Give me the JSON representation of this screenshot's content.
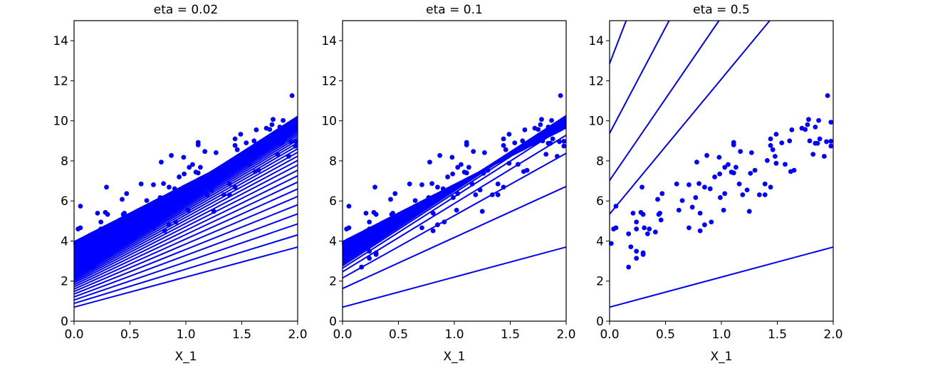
{
  "chart_data": [
    {
      "type": "scatter+line",
      "title": "eta = 0.02",
      "eta": 0.02,
      "xlabel": "X_1",
      "ylabel": "",
      "xlim": [
        0,
        2
      ],
      "ylim": [
        0,
        15
      ],
      "xticks": [
        "0.0",
        "0.5",
        "1.0",
        "1.5",
        "2.0"
      ],
      "yticks": [
        "0",
        "2",
        "4",
        "6",
        "8",
        "10",
        "12",
        "14"
      ],
      "grid": false
    },
    {
      "type": "scatter+line",
      "title": "eta = 0.1",
      "eta": 0.1,
      "xlabel": "X_1",
      "ylabel": "",
      "xlim": [
        0,
        2
      ],
      "ylim": [
        0,
        15
      ],
      "xticks": [
        "0.0",
        "0.5",
        "1.0",
        "1.5",
        "2.0"
      ],
      "yticks": [
        "0",
        "2",
        "4",
        "6",
        "8",
        "10",
        "12",
        "14"
      ],
      "grid": false
    },
    {
      "type": "scatter+line",
      "title": "eta = 0.5",
      "eta": 0.5,
      "xlabel": "X_1",
      "ylabel": "",
      "xlim": [
        0,
        2
      ],
      "ylim": [
        0,
        15
      ],
      "xticks": [
        "0.0",
        "0.5",
        "1.0",
        "1.5",
        "2.0"
      ],
      "yticks": [
        "0",
        "2",
        "4",
        "6",
        "8",
        "10",
        "12",
        "14"
      ],
      "grid": false
    }
  ],
  "initial_line": {
    "intercept": 0.7,
    "slope": 1.5
  },
  "colors": {
    "points": "#0000ff",
    "lines": "#0000ff"
  },
  "points": [
    [
      0.015,
      3.88
    ],
    [
      0.036,
      4.6
    ],
    [
      0.057,
      4.66
    ],
    [
      0.057,
      5.74
    ],
    [
      0.17,
      2.7
    ],
    [
      0.17,
      4.36
    ],
    [
      0.19,
      3.71
    ],
    [
      0.21,
      5.39
    ],
    [
      0.24,
      4.95
    ],
    [
      0.24,
      4.6
    ],
    [
      0.24,
      3.49
    ],
    [
      0.24,
      3.14
    ],
    [
      0.28,
      5.43
    ],
    [
      0.3,
      5.33
    ],
    [
      0.29,
      6.69
    ],
    [
      0.3,
      3.41
    ],
    [
      0.3,
      3.33
    ],
    [
      0.31,
      4.66
    ],
    [
      0.34,
      4.36
    ],
    [
      0.355,
      4.6
    ],
    [
      0.41,
      4.45
    ],
    [
      0.43,
      6.08
    ],
    [
      0.44,
      5.33
    ],
    [
      0.45,
      5.39
    ],
    [
      0.46,
      5.05
    ],
    [
      0.47,
      6.37
    ],
    [
      0.6,
      6.85
    ],
    [
      0.62,
      5.54
    ],
    [
      0.65,
      6.02
    ],
    [
      0.71,
      6.81
    ],
    [
      0.71,
      4.66
    ],
    [
      0.74,
      5.69
    ],
    [
      0.77,
      6.17
    ],
    [
      0.78,
      7.94
    ],
    [
      0.8,
      6.87
    ],
    [
      0.81,
      4.51
    ],
    [
      0.81,
      5.39
    ],
    [
      0.85,
      4.81
    ],
    [
      0.85,
      6.69
    ],
    [
      0.87,
      8.27
    ],
    [
      0.9,
      6.61
    ],
    [
      0.91,
      4.95
    ],
    [
      0.94,
      7.2
    ],
    [
      0.98,
      8.18
    ],
    [
      0.985,
      7.35
    ],
    [
      0.99,
      6.17
    ],
    [
      1.02,
      5.54
    ],
    [
      1.03,
      7.68
    ],
    [
      1.03,
      6.37
    ],
    [
      1.06,
      7.82
    ],
    [
      1.09,
      7.44
    ],
    [
      1.11,
      7.4
    ],
    [
      1.11,
      8.92
    ],
    [
      1.11,
      8.8
    ],
    [
      1.13,
      7.68
    ],
    [
      1.16,
      6.85
    ],
    [
      1.17,
      8.47
    ],
    [
      1.19,
      6.31
    ],
    [
      1.23,
      6.55
    ],
    [
      1.25,
      5.48
    ],
    [
      1.26,
      7.38
    ],
    [
      1.27,
      8.41
    ],
    [
      1.3,
      7.53
    ],
    [
      1.34,
      6.31
    ],
    [
      1.39,
      6.85
    ],
    [
      1.39,
      6.31
    ],
    [
      1.41,
      8.02
    ],
    [
      1.44,
      9.1
    ],
    [
      1.44,
      8.77
    ],
    [
      1.44,
      6.69
    ],
    [
      1.46,
      8.56
    ],
    [
      1.48,
      8.23
    ],
    [
      1.49,
      9.33
    ],
    [
      1.49,
      7.88
    ],
    [
      1.54,
      8.9
    ],
    [
      1.57,
      7.83
    ],
    [
      1.61,
      9.0
    ],
    [
      1.62,
      7.47
    ],
    [
      1.65,
      7.53
    ],
    [
      1.63,
      9.55
    ],
    [
      1.72,
      9.63
    ],
    [
      1.75,
      9.57
    ],
    [
      1.77,
      9.81
    ],
    [
      1.78,
      10.07
    ],
    [
      1.79,
      9.0
    ],
    [
      1.82,
      8.33
    ],
    [
      1.84,
      9.69
    ],
    [
      1.84,
      8.88
    ],
    [
      1.86,
      8.88
    ],
    [
      1.87,
      10.02
    ],
    [
      1.88,
      9.1
    ],
    [
      1.92,
      8.23
    ],
    [
      1.94,
      8.96
    ],
    [
      1.95,
      11.26
    ],
    [
      1.98,
      9.93
    ],
    [
      1.98,
      8.98
    ],
    [
      1.98,
      8.74
    ]
  ]
}
